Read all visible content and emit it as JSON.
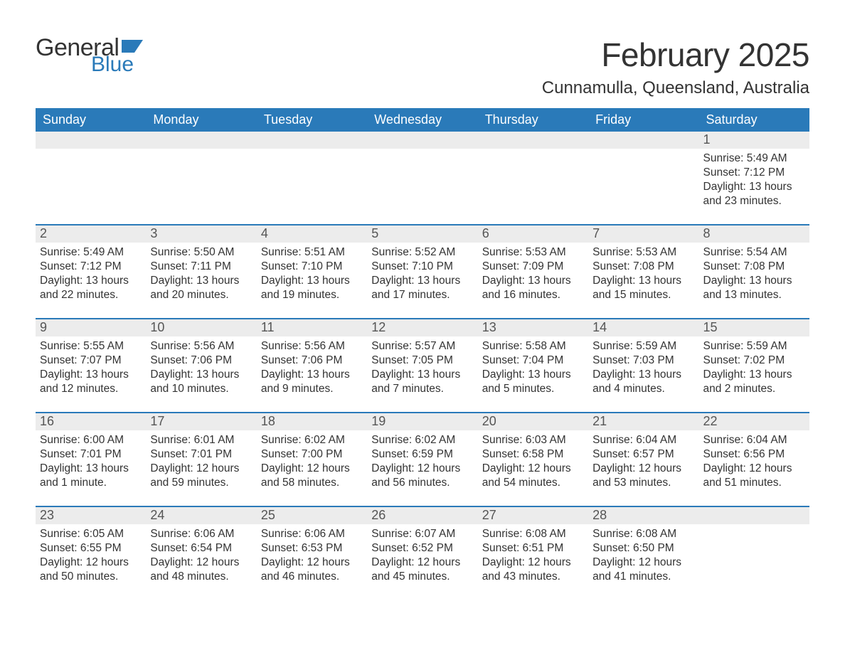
{
  "logo": {
    "text1": "General",
    "text2": "Blue"
  },
  "title": "February 2025",
  "location": "Cunnamulla, Queensland, Australia",
  "colors": {
    "accent": "#2a7ab9",
    "row_bg": "#ececec",
    "text": "#333333",
    "bg": "#ffffff"
  },
  "fonts": {
    "title_size": 46,
    "location_size": 24,
    "weekday_size": 18,
    "daynum_size": 18,
    "body_size": 15.5
  },
  "weekdays": [
    "Sunday",
    "Monday",
    "Tuesday",
    "Wednesday",
    "Thursday",
    "Friday",
    "Saturday"
  ],
  "calendar": {
    "start_weekday_index": 6,
    "days_in_month": 28
  },
  "days": {
    "1": {
      "sunrise": "5:49 AM",
      "sunset": "7:12 PM",
      "daylight": "13 hours and 23 minutes."
    },
    "2": {
      "sunrise": "5:49 AM",
      "sunset": "7:12 PM",
      "daylight": "13 hours and 22 minutes."
    },
    "3": {
      "sunrise": "5:50 AM",
      "sunset": "7:11 PM",
      "daylight": "13 hours and 20 minutes."
    },
    "4": {
      "sunrise": "5:51 AM",
      "sunset": "7:10 PM",
      "daylight": "13 hours and 19 minutes."
    },
    "5": {
      "sunrise": "5:52 AM",
      "sunset": "7:10 PM",
      "daylight": "13 hours and 17 minutes."
    },
    "6": {
      "sunrise": "5:53 AM",
      "sunset": "7:09 PM",
      "daylight": "13 hours and 16 minutes."
    },
    "7": {
      "sunrise": "5:53 AM",
      "sunset": "7:08 PM",
      "daylight": "13 hours and 15 minutes."
    },
    "8": {
      "sunrise": "5:54 AM",
      "sunset": "7:08 PM",
      "daylight": "13 hours and 13 minutes."
    },
    "9": {
      "sunrise": "5:55 AM",
      "sunset": "7:07 PM",
      "daylight": "13 hours and 12 minutes."
    },
    "10": {
      "sunrise": "5:56 AM",
      "sunset": "7:06 PM",
      "daylight": "13 hours and 10 minutes."
    },
    "11": {
      "sunrise": "5:56 AM",
      "sunset": "7:06 PM",
      "daylight": "13 hours and 9 minutes."
    },
    "12": {
      "sunrise": "5:57 AM",
      "sunset": "7:05 PM",
      "daylight": "13 hours and 7 minutes."
    },
    "13": {
      "sunrise": "5:58 AM",
      "sunset": "7:04 PM",
      "daylight": "13 hours and 5 minutes."
    },
    "14": {
      "sunrise": "5:59 AM",
      "sunset": "7:03 PM",
      "daylight": "13 hours and 4 minutes."
    },
    "15": {
      "sunrise": "5:59 AM",
      "sunset": "7:02 PM",
      "daylight": "13 hours and 2 minutes."
    },
    "16": {
      "sunrise": "6:00 AM",
      "sunset": "7:01 PM",
      "daylight": "13 hours and 1 minute."
    },
    "17": {
      "sunrise": "6:01 AM",
      "sunset": "7:01 PM",
      "daylight": "12 hours and 59 minutes."
    },
    "18": {
      "sunrise": "6:02 AM",
      "sunset": "7:00 PM",
      "daylight": "12 hours and 58 minutes."
    },
    "19": {
      "sunrise": "6:02 AM",
      "sunset": "6:59 PM",
      "daylight": "12 hours and 56 minutes."
    },
    "20": {
      "sunrise": "6:03 AM",
      "sunset": "6:58 PM",
      "daylight": "12 hours and 54 minutes."
    },
    "21": {
      "sunrise": "6:04 AM",
      "sunset": "6:57 PM",
      "daylight": "12 hours and 53 minutes."
    },
    "22": {
      "sunrise": "6:04 AM",
      "sunset": "6:56 PM",
      "daylight": "12 hours and 51 minutes."
    },
    "23": {
      "sunrise": "6:05 AM",
      "sunset": "6:55 PM",
      "daylight": "12 hours and 50 minutes."
    },
    "24": {
      "sunrise": "6:06 AM",
      "sunset": "6:54 PM",
      "daylight": "12 hours and 48 minutes."
    },
    "25": {
      "sunrise": "6:06 AM",
      "sunset": "6:53 PM",
      "daylight": "12 hours and 46 minutes."
    },
    "26": {
      "sunrise": "6:07 AM",
      "sunset": "6:52 PM",
      "daylight": "12 hours and 45 minutes."
    },
    "27": {
      "sunrise": "6:08 AM",
      "sunset": "6:51 PM",
      "daylight": "12 hours and 43 minutes."
    },
    "28": {
      "sunrise": "6:08 AM",
      "sunset": "6:50 PM",
      "daylight": "12 hours and 41 minutes."
    }
  },
  "labels": {
    "sunrise": "Sunrise:",
    "sunset": "Sunset:",
    "daylight": "Daylight:"
  }
}
